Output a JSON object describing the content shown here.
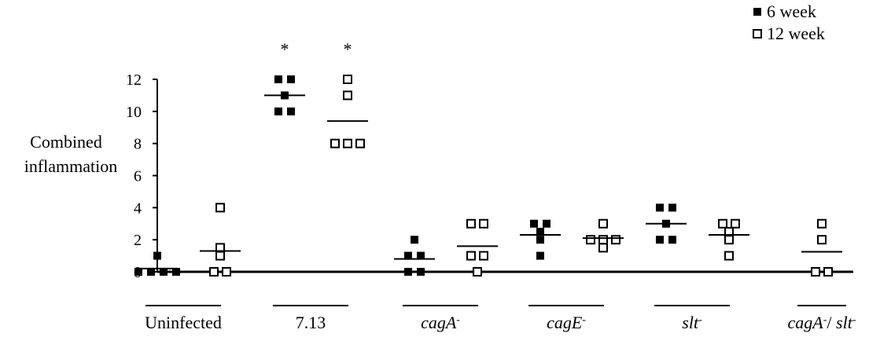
{
  "chart_data": {
    "type": "scatter",
    "title": "",
    "ylabel_lines": [
      "Combined",
      "inflammation"
    ],
    "xlabel": "",
    "ylim": [
      0,
      12
    ],
    "yticks": [
      0,
      2,
      4,
      6,
      8,
      10,
      12
    ],
    "grid": false,
    "legend_position": "top-right",
    "series": [
      {
        "name": "6 week",
        "marker": "filled-square",
        "color": "#000000"
      },
      {
        "name": "12 week",
        "marker": "open-square",
        "color": "#000000"
      }
    ],
    "groups": [
      {
        "label_parts": [
          {
            "text": "Uninfected",
            "italic": false
          }
        ],
        "sets": [
          {
            "series": 0,
            "values": [
              0,
              0,
              0,
              0,
              1
            ],
            "mean": 0.2
          },
          {
            "series": 1,
            "values": [
              0,
              0,
              1,
              1.5,
              4
            ],
            "mean": 1.3
          }
        ]
      },
      {
        "label_parts": [
          {
            "text": "7.13",
            "italic": false
          }
        ],
        "sets": [
          {
            "series": 0,
            "values": [
              10,
              10,
              11,
              12,
              12
            ],
            "mean": 11,
            "star": "*"
          },
          {
            "series": 1,
            "values": [
              8,
              8,
              8,
              11,
              12
            ],
            "mean": 9.4,
            "star": "*"
          }
        ]
      },
      {
        "label_parts": [
          {
            "text": "cagA",
            "italic": true
          },
          {
            "text": "-",
            "sup": true
          }
        ],
        "sets": [
          {
            "series": 0,
            "values": [
              0,
              0,
              1,
              1,
              2
            ],
            "mean": 0.8
          },
          {
            "series": 1,
            "values": [
              0,
              1,
              1,
              3,
              3
            ],
            "mean": 1.6
          }
        ]
      },
      {
        "label_parts": [
          {
            "text": "cagE",
            "italic": true
          },
          {
            "text": "-",
            "sup": true
          }
        ],
        "sets": [
          {
            "series": 0,
            "values": [
              1,
              2.5,
              2,
              3,
              3
            ],
            "mean": 2.3
          },
          {
            "series": 1,
            "values": [
              1.5,
              2,
              2,
              2,
              3
            ],
            "mean": 2.1
          }
        ]
      },
      {
        "label_parts": [
          {
            "text": "slt",
            "italic": true
          },
          {
            "text": "-",
            "sup": true
          }
        ],
        "sets": [
          {
            "series": 0,
            "values": [
              2,
              2,
              3,
              4,
              4
            ],
            "mean": 3
          },
          {
            "series": 1,
            "values": [
              1,
              2,
              2.5,
              3,
              3
            ],
            "mean": 2.3
          }
        ]
      },
      {
        "label_parts": [
          {
            "text": "cagA",
            "italic": true
          },
          {
            "text": "-",
            "sup": true
          },
          {
            "text": "/ ",
            "italic": false
          },
          {
            "text": "slt",
            "italic": true
          },
          {
            "text": "-",
            "sup": true
          }
        ],
        "sets": [
          {
            "series": 1,
            "values": [
              0,
              0,
              2,
              3
            ],
            "mean": 1.25
          }
        ]
      }
    ]
  }
}
